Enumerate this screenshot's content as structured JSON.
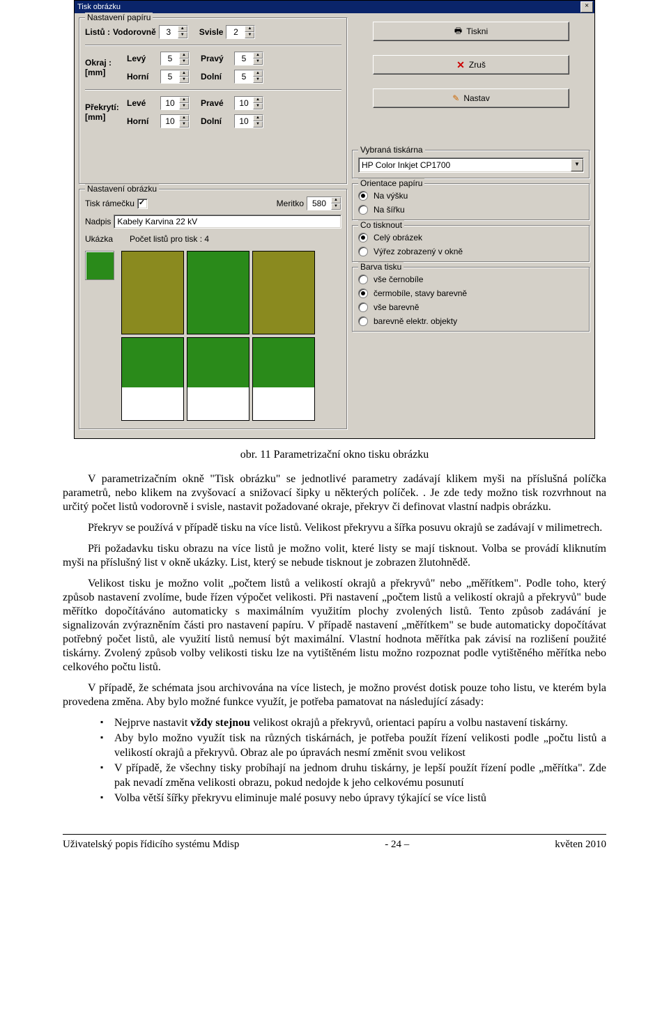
{
  "dialog": {
    "title": "Tisk obrázku",
    "paper_group": {
      "legend": "Nastavení papíru",
      "sheets_label": "Listů :",
      "horiz_label": "Vodorovně",
      "horiz_value": "3",
      "vert_label": "Svisle",
      "vert_value": "2",
      "margin_label": "Okraj :",
      "margin_unit": "[mm]",
      "m_left_label": "Levý",
      "m_left": "5",
      "m_right_label": "Pravý",
      "m_right": "5",
      "m_top_label": "Horní",
      "m_top": "5",
      "m_bottom_label": "Dolní",
      "m_bottom": "5",
      "overlap_label": "Překrytí:",
      "overlap_unit": "[mm]",
      "o_left_label": "Levé",
      "o_left": "10",
      "o_right_label": "Pravé",
      "o_right": "10",
      "o_top_label": "Horní",
      "o_top": "10",
      "o_bottom_label": "Dolní",
      "o_bottom": "10"
    },
    "image_group": {
      "legend": "Nastavení obrázku",
      "frame_label": "Tisk rámečku",
      "scale_label": "Meritko",
      "scale_value": "580",
      "caption_label": "Nadpis",
      "caption_value": "Kabely Karvina 22 kV",
      "preview_label": "Ukázka",
      "pagecount_label": "Počet listů pro tisk : 4"
    },
    "buttons": {
      "print": "Tiskni",
      "cancel": "Zruš",
      "set": "Nastav"
    },
    "printer_group": {
      "legend": "Vybraná tiskárna",
      "value": "HP Color Inkjet CP1700"
    },
    "orient_group": {
      "legend": "Orientace papíru",
      "portrait": "Na výšku",
      "landscape": "Na šířku"
    },
    "what_group": {
      "legend": "Co tisknout",
      "whole": "Celý obrázek",
      "viewport": "Výřez zobrazený v okně"
    },
    "color_group": {
      "legend": "Barva tisku",
      "o1": "vše černobíle",
      "o2": "čermobíle, stavy barevně",
      "o3": "vše barevně",
      "o4": "barevně elektr. objekty"
    },
    "tiles": {
      "ukazka_color": "#2a8a1a",
      "sel_color": "#2a8a1a",
      "unsel_color": "#8a8a1f",
      "selected": [
        false,
        true,
        false,
        true,
        true,
        true
      ],
      "fill_ratio": [
        1,
        1,
        1,
        0.6,
        0.6,
        0.6
      ]
    }
  },
  "doc": {
    "caption": "obr. 11  Parametrizační okno tisku obrázku",
    "p1": "V parametrizačním okně \"Tisk obrázku\" se jednotlivé parametry zadávají klikem myši na příslušná políčka parametrů, nebo klikem na zvyšovací a snižovací šipky u některých políček. . Je zde tedy možno tisk rozvrhnout na určitý počet listů vodorovně i svisle, nastavit požadované okraje, překryv či definovat vlastní nadpis obrázku.",
    "p2": "Překryv se používá v případě tisku na více listů. Velikost překryvu a šířka posuvu okrajů se zadávají v milimetrech.",
    "p3": "Při požadavku tisku obrazu na více listů je možno volit, které listy se mají tisknout. Volba se provádí kliknutím myši na příslušný list v okně ukázky. List, který se nebude tisknout je zobrazen žlutohnědě.",
    "p4": "Velikost tisku je možno volit „počtem listů a velikostí okrajů a překryvů\" nebo „měřítkem\". Podle toho, který způsob nastavení zvolíme, bude řízen výpočet velikosti. Při nastavení „počtem listů a velikostí okrajů a překryvů\" bude měřítko dopočítáváno automaticky s maximálním využitím plochy zvolených listů. Tento způsob zadávání je signalizován zvýrazněním části pro nastavení papíru. V případě nastavení „měřítkem\" se bude automaticky dopočítávat potřebný počet listů, ale využití listů nemusí být maximální. Vlastní hodnota měřítka pak závisí na rozlišení použité tiskárny. Zvolený způsob volby velikosti tisku lze na vytištěném listu možno rozpoznat podle vytištěného měřítka nebo celkového počtu listů.",
    "p5": "V případě, že schémata jsou archivována na více listech, je možno provést dotisk pouze toho listu, ve kterém byla provedena změna. Aby bylo možné funkce využít, je potřeba pamatovat na následující zásady:",
    "b1a": "Nejprve nastavit ",
    "b1b": "vždy stejnou",
    "b1c": " velikost okrajů a překryvů, orientaci papíru a volbu nastavení tiskárny.",
    "b2": "Aby bylo možno využít tisk na různých tiskárnách, je potřeba použít řízení velikosti podle „počtu listů a velikostí okrajů a překryvů. Obraz ale po úpravách nesmí změnit svou velikost",
    "b3": "V případě, že všechny tisky probíhají na jednom druhu tiskárny, je lepší použít řízení podle „měřítka\". Zde pak nevadí změna velikosti obrazu, pokud nedojde k jeho celkovému posunutí",
    "b4": "Volba větší šířky překryvu eliminuje malé posuvy nebo úpravy týkající se více listů",
    "footer_left": "Uživatelský popis řídicího systému Mdisp",
    "footer_mid": "- 24 –",
    "footer_right": "květen 2010"
  }
}
